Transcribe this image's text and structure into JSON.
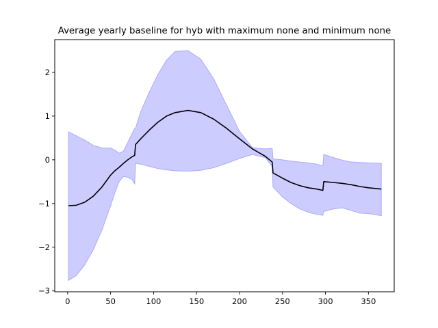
{
  "chart_data": {
    "type": "area",
    "title": "Average yearly baseline for hyb with maximum none and minimum none",
    "xlabel": "",
    "ylabel": "",
    "xlim": [
      -15,
      380
    ],
    "ylim": [
      -3.02,
      2.75
    ],
    "xticks": [
      0,
      50,
      100,
      150,
      200,
      250,
      300,
      350
    ],
    "yticks": [
      -3,
      -2,
      -1,
      0,
      1,
      2
    ],
    "grid": false,
    "colors": {
      "mean_line": "#000000",
      "band_fill": "#ccccff",
      "band_edge": "#aaaaff"
    },
    "series": [
      {
        "role": "mean",
        "x": [
          1,
          10,
          20,
          30,
          40,
          50,
          55,
          60,
          65,
          70,
          75,
          78,
          79,
          85,
          95,
          105,
          115,
          125,
          140,
          155,
          170,
          185,
          200,
          215,
          230,
          238,
          239,
          250,
          260,
          270,
          280,
          290,
          297,
          298,
          310,
          320,
          330,
          340,
          350,
          365
        ],
        "y": [
          -1.05,
          -1.04,
          -0.97,
          -0.83,
          -0.62,
          -0.35,
          -0.25,
          -0.17,
          -0.08,
          0.0,
          0.07,
          0.1,
          0.35,
          0.48,
          0.68,
          0.86,
          1.0,
          1.08,
          1.13,
          1.08,
          0.93,
          0.72,
          0.48,
          0.25,
          0.08,
          -0.05,
          -0.3,
          -0.42,
          -0.52,
          -0.59,
          -0.64,
          -0.67,
          -0.7,
          -0.5,
          -0.52,
          -0.54,
          -0.57,
          -0.61,
          -0.64,
          -0.67
        ]
      },
      {
        "role": "upper",
        "x": [
          1,
          10,
          20,
          30,
          40,
          50,
          55,
          60,
          65,
          70,
          75,
          78,
          79,
          85,
          95,
          105,
          115,
          125,
          140,
          155,
          170,
          185,
          200,
          215,
          230,
          238,
          239,
          250,
          260,
          270,
          280,
          290,
          297,
          298,
          310,
          320,
          330,
          340,
          350,
          365
        ],
        "y": [
          0.64,
          0.55,
          0.45,
          0.33,
          0.27,
          0.27,
          0.22,
          0.15,
          0.2,
          0.4,
          0.6,
          0.72,
          0.72,
          1.1,
          1.55,
          1.95,
          2.28,
          2.48,
          2.5,
          2.3,
          1.85,
          1.25,
          0.65,
          0.28,
          0.25,
          0.26,
          0.02,
          0.0,
          -0.03,
          -0.05,
          -0.07,
          -0.1,
          -0.14,
          0.12,
          0.05,
          -0.01,
          -0.05,
          -0.06,
          -0.07,
          -0.08
        ]
      },
      {
        "role": "lower",
        "x": [
          1,
          10,
          20,
          30,
          40,
          50,
          55,
          60,
          65,
          70,
          75,
          78,
          79,
          85,
          95,
          105,
          115,
          125,
          140,
          155,
          170,
          185,
          200,
          215,
          230,
          238,
          239,
          250,
          260,
          270,
          280,
          290,
          297,
          298,
          310,
          320,
          330,
          340,
          350,
          365
        ],
        "y": [
          -2.76,
          -2.65,
          -2.4,
          -2.05,
          -1.6,
          -1.05,
          -0.75,
          -0.5,
          -0.38,
          -0.4,
          -0.45,
          -0.55,
          -0.08,
          -0.1,
          -0.15,
          -0.2,
          -0.23,
          -0.25,
          -0.26,
          -0.24,
          -0.18,
          -0.08,
          0.03,
          0.12,
          0.05,
          -0.15,
          -0.62,
          -0.85,
          -1.0,
          -1.12,
          -1.2,
          -1.25,
          -1.27,
          -1.18,
          -1.12,
          -1.1,
          -1.16,
          -1.22,
          -1.23,
          -1.28
        ]
      }
    ]
  }
}
